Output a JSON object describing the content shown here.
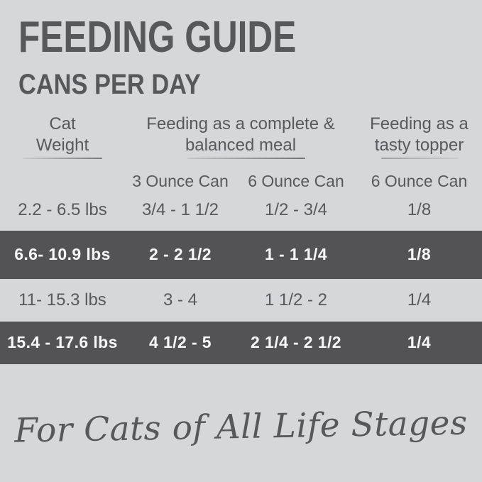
{
  "page": {
    "title": "FEEDING GUIDE",
    "subtitle": "CANS PER DAY",
    "footer_script": "For Cats of All Life Stages"
  },
  "colors": {
    "background": "#d6d7d9",
    "text": "#58595b",
    "highlight_row_bg": "#535355",
    "highlight_row_text": "#f7f7f7"
  },
  "table": {
    "group_headers": {
      "weight": {
        "line1": "Cat",
        "line2": "Weight"
      },
      "meal": {
        "line1": "Feeding as a complete &",
        "line2": "balanced meal"
      },
      "topper": {
        "line1": "Feeding as a",
        "line2": "tasty topper"
      }
    },
    "column_headers": {
      "meal_3oz": "3 Ounce Can",
      "meal_6oz": "6 Ounce Can",
      "topper_6oz": "6 Ounce Can"
    },
    "rows": [
      {
        "weight": "2.2 - 6.5 lbs",
        "meal_3oz": "3/4 - 1 1/2",
        "meal_6oz": "1/2 - 3/4",
        "topper_6oz": "1/8",
        "highlighted": false
      },
      {
        "weight": "6.6- 10.9 lbs",
        "meal_3oz": "2 - 2 1/2",
        "meal_6oz": "1 - 1 1/4",
        "topper_6oz": "1/8",
        "highlighted": true
      },
      {
        "weight": "11- 15.3 lbs",
        "meal_3oz": "3 - 4",
        "meal_6oz": "1 1/2 - 2",
        "topper_6oz": "1/4",
        "highlighted": false
      },
      {
        "weight": "15.4 - 17.6 lbs",
        "meal_3oz": "4 1/2 - 5",
        "meal_6oz": "2 1/4 - 2 1/2",
        "topper_6oz": "1/4",
        "highlighted": true
      }
    ]
  },
  "chart_data": {
    "type": "table",
    "title": "FEEDING GUIDE — CANS PER DAY",
    "columns": [
      "Cat Weight",
      "Complete & balanced meal: 3 Ounce Can",
      "Complete & balanced meal: 6 Ounce Can",
      "Tasty topper: 6 Ounce Can"
    ],
    "rows": [
      [
        "2.2 - 6.5 lbs",
        "3/4 - 1 1/2",
        "1/2 - 3/4",
        "1/8"
      ],
      [
        "6.6- 10.9 lbs",
        "2 - 2 1/2",
        "1 - 1 1/4",
        "1/8"
      ],
      [
        "11- 15.3 lbs",
        "3 - 4",
        "1 1/2 - 2",
        "1/4"
      ],
      [
        "15.4 - 17.6 lbs",
        "4 1/2 - 5",
        "2 1/4 - 2 1/2",
        "1/4"
      ]
    ]
  }
}
